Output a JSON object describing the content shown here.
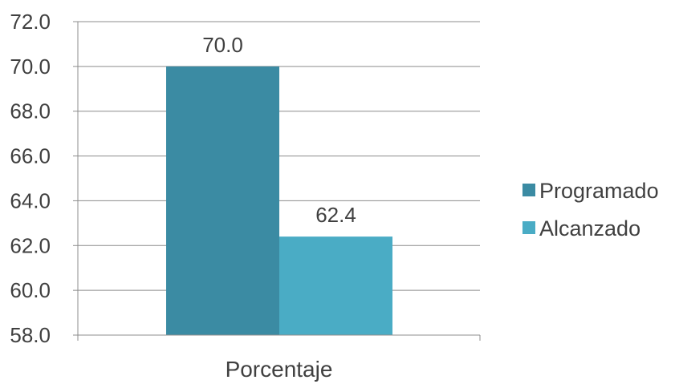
{
  "chart_data": {
    "type": "bar",
    "categories": [
      "Porcentaje"
    ],
    "series": [
      {
        "name": "Programado",
        "values": [
          70.0
        ],
        "color": "#3b8ba3"
      },
      {
        "name": "Alcanzado",
        "values": [
          62.4
        ],
        "color": "#4aacc5"
      }
    ],
    "data_labels": [
      "70.0",
      "62.4"
    ],
    "y_ticks": [
      "72.0",
      "70.0",
      "68.0",
      "66.0",
      "64.0",
      "62.0",
      "60.0",
      "58.0"
    ],
    "ylim": [
      58,
      72
    ],
    "y_tick_step": 2,
    "grid": true,
    "legend_position": "right",
    "title": "",
    "xlabel": "",
    "ylabel": ""
  }
}
